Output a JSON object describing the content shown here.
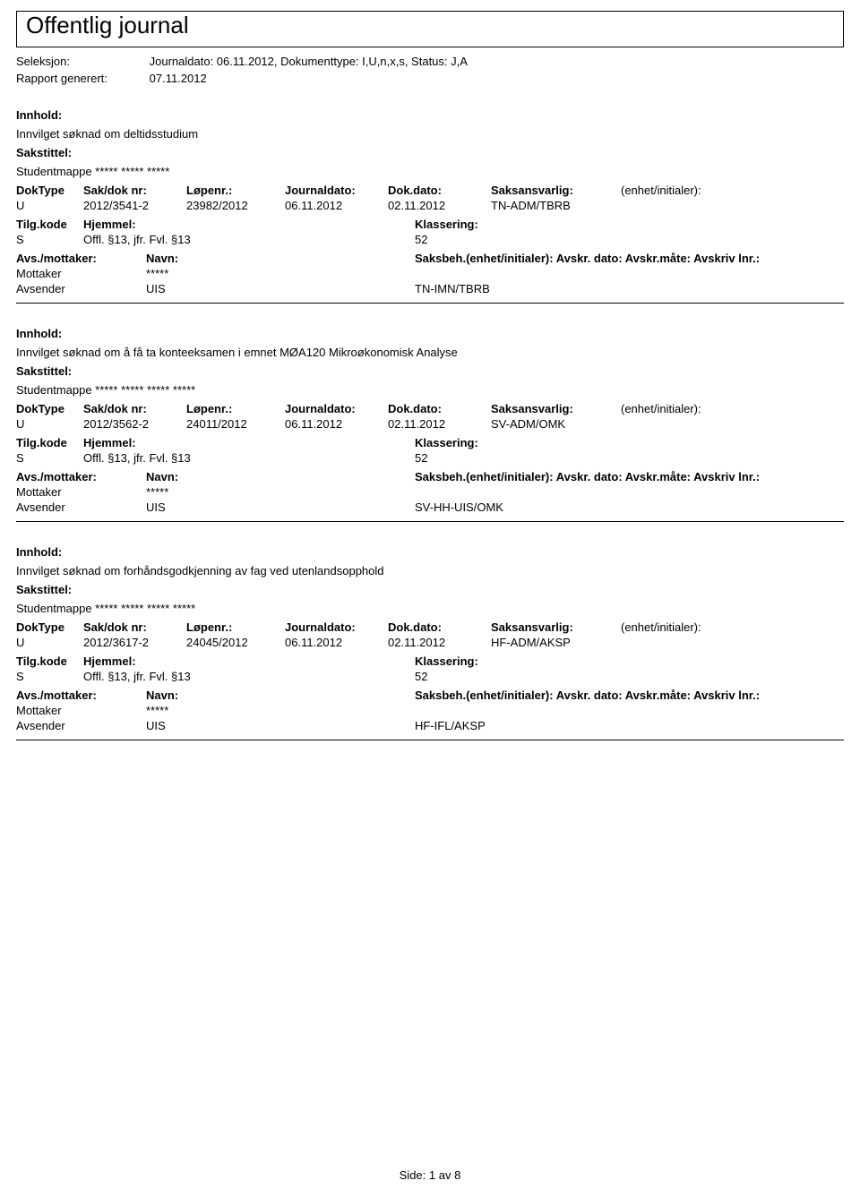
{
  "header": {
    "title": "Offentlig journal",
    "seleksjon_label": "Seleksjon:",
    "seleksjon_value": "Journaldato: 06.11.2012, Dokumenttype: I,U,n,x,s, Status: J,A",
    "rapport_label": "Rapport generert:",
    "rapport_value": "07.11.2012"
  },
  "labels": {
    "innhold": "Innhold:",
    "sakstittel": "Sakstittel:",
    "doktype": "DokType",
    "sakdok": "Sak/dok nr:",
    "lopenr": "Løpenr.:",
    "journaldato": "Journaldato:",
    "dokdato": "Dok.dato:",
    "saksansvarlig": "Saksansvarlig:",
    "enhet_init": "(enhet/initialer):",
    "tilgkode": "Tilg.kode",
    "hjemmel": "Hjemmel:",
    "klassering": "Klassering:",
    "avsmottaker": "Avs./mottaker:",
    "navn": "Navn:",
    "saksbeh_line": "Saksbeh.(enhet/initialer): Avskr. dato: Avskr.måte: Avskriv lnr.:",
    "mottaker": "Mottaker",
    "avsender": "Avsender"
  },
  "entries": [
    {
      "innhold": "Innvilget søknad om deltidsstudium",
      "sakstittel": "Studentmappe ***** ***** *****",
      "doktype": "U",
      "sakdok": "2012/3541-2",
      "lopenr": "23982/2012",
      "journaldato": "06.11.2012",
      "dokdato": "02.11.2012",
      "saksansvarlig": "TN-ADM/TBRB",
      "tilgkode": "S",
      "hjemmel": "Offl. §13, jfr. Fvl. §13",
      "klassering": "52",
      "mottaker_navn": "*****",
      "avsender_navn": "UIS",
      "saksbeh": "TN-IMN/TBRB"
    },
    {
      "innhold": "Innvilget søknad om å få ta konteeksamen i emnet MØA120 Mikroøkonomisk Analyse",
      "sakstittel": "Studentmappe ***** ***** ***** *****",
      "doktype": "U",
      "sakdok": "2012/3562-2",
      "lopenr": "24011/2012",
      "journaldato": "06.11.2012",
      "dokdato": "02.11.2012",
      "saksansvarlig": "SV-ADM/OMK",
      "tilgkode": "S",
      "hjemmel": "Offl. §13, jfr. Fvl. §13",
      "klassering": "52",
      "mottaker_navn": "*****",
      "avsender_navn": "UIS",
      "saksbeh": "SV-HH-UIS/OMK"
    },
    {
      "innhold": "Innvilget søknad om forhåndsgodkjenning av fag ved utenlandsopphold",
      "sakstittel": "Studentmappe ***** ***** ***** *****",
      "doktype": "U",
      "sakdok": "2012/3617-2",
      "lopenr": "24045/2012",
      "journaldato": "06.11.2012",
      "dokdato": "02.11.2012",
      "saksansvarlig": "HF-ADM/AKSP",
      "tilgkode": "S",
      "hjemmel": "Offl. §13, jfr. Fvl. §13",
      "klassering": "52",
      "mottaker_navn": "*****",
      "avsender_navn": "UIS",
      "saksbeh": "HF-IFL/AKSP"
    }
  ],
  "footer": {
    "side_label": "Side:",
    "current": "1",
    "sep": "av",
    "total": "8"
  }
}
